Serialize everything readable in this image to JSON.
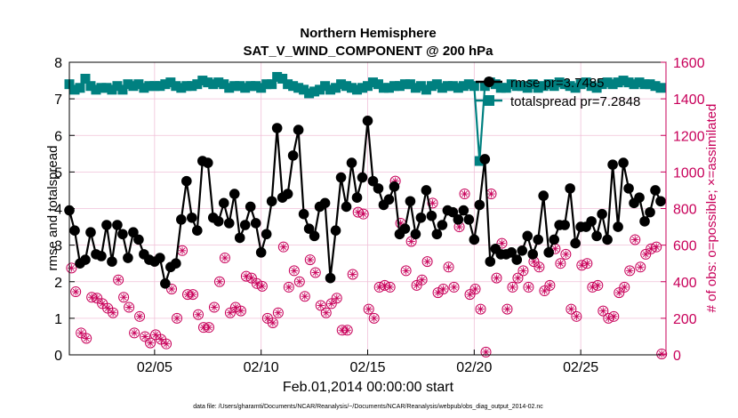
{
  "chart_data": {
    "type": "line",
    "title_line1": "Northern Hemisphere",
    "title_line2": "SAT_V_WIND_COMPONENT @ 200 hPa",
    "xlabel": "Feb.01,2014 00:00:00 start",
    "ylabel_left": "rmse and totalspread",
    "ylabel_right": "# of obs: o=possible; ×=assimilated",
    "footnote": "data file: /Users/gharamti/Documents/NCAR/Reanalysis/~/Documents/NCAR/Reanalysis/webpub/obs_diag_output_2014-02.nc",
    "xlim": [
      1,
      29
    ],
    "ylim_left": [
      0,
      8
    ],
    "ylim_right": [
      0,
      1600
    ],
    "xticks": [
      5,
      10,
      15,
      20,
      25
    ],
    "xtick_labels": [
      "02/05",
      "02/10",
      "02/15",
      "02/20",
      "02/25"
    ],
    "yticks_left": [
      0,
      1,
      2,
      3,
      4,
      5,
      6,
      7,
      8
    ],
    "yticks_left_labels": [
      "0",
      "1",
      "2",
      "3",
      "4",
      "5",
      "6",
      "7",
      "8"
    ],
    "yticks_right": [
      0,
      200,
      400,
      600,
      800,
      1000,
      1200,
      1400,
      1600
    ],
    "yticks_right_labels": [
      "0",
      "200",
      "400",
      "600",
      "800",
      "1000",
      "1200",
      "1400",
      "1600"
    ],
    "grid": true,
    "legend_placement": "top-right",
    "colors": {
      "rmse": "#000000",
      "totalspread": "#008080",
      "obs_count": "#c8005a",
      "grid": "#f0c0d8"
    },
    "series": [
      {
        "name": "rmse pr=3.7485",
        "axis": "left",
        "marker": "filled-circle",
        "x": [
          1.0,
          1.25,
          1.5,
          1.75,
          2.0,
          2.25,
          2.5,
          2.75,
          3.0,
          3.25,
          3.5,
          3.75,
          4.0,
          4.25,
          4.5,
          4.75,
          5.0,
          5.25,
          5.5,
          5.75,
          6.0,
          6.25,
          6.5,
          6.75,
          7.0,
          7.25,
          7.5,
          7.75,
          8.0,
          8.25,
          8.5,
          8.75,
          9.0,
          9.25,
          9.5,
          9.75,
          10.0,
          10.25,
          10.5,
          10.75,
          11.0,
          11.25,
          11.5,
          11.75,
          12.0,
          12.25,
          12.5,
          12.75,
          13.0,
          13.25,
          13.5,
          13.75,
          14.0,
          14.25,
          14.5,
          14.75,
          15.0,
          15.25,
          15.5,
          15.75,
          16.0,
          16.25,
          16.5,
          16.75,
          17.0,
          17.25,
          17.5,
          17.75,
          18.0,
          18.25,
          18.5,
          18.75,
          19.0,
          19.25,
          19.5,
          19.75,
          20.0,
          20.25,
          20.5,
          20.75,
          21.0,
          21.25,
          21.5,
          21.75,
          22.0,
          22.25,
          22.5,
          22.75,
          23.0,
          23.25,
          23.5,
          23.75,
          24.0,
          24.25,
          24.5,
          24.75,
          25.0,
          25.25,
          25.5,
          25.75,
          26.0,
          26.25,
          26.5,
          26.75,
          27.0,
          27.25,
          27.5,
          27.75,
          28.0,
          28.25,
          28.5,
          28.75
        ],
        "values": [
          3.95,
          3.4,
          2.5,
          2.6,
          3.35,
          2.75,
          2.7,
          3.55,
          2.55,
          3.55,
          3.3,
          2.65,
          3.35,
          3.15,
          2.75,
          2.6,
          2.55,
          2.65,
          1.95,
          2.4,
          2.5,
          3.7,
          4.75,
          3.75,
          3.4,
          5.3,
          5.25,
          3.75,
          3.65,
          4.15,
          3.6,
          4.4,
          3.2,
          3.55,
          4.05,
          3.6,
          2.8,
          3.3,
          4.2,
          6.2,
          4.3,
          4.4,
          5.45,
          6.15,
          3.85,
          3.45,
          3.25,
          4.05,
          4.15,
          2.1,
          3.4,
          4.85,
          4.05,
          5.25,
          4.3,
          4.85,
          6.4,
          4.75,
          4.55,
          4.1,
          4.25,
          4.6,
          3.3,
          3.45,
          4.2,
          3.3,
          3.75,
          4.5,
          3.8,
          3.3,
          3.55,
          3.95,
          3.9,
          3.7,
          3.95,
          3.7,
          3.15,
          4.1,
          5.35,
          2.55,
          2.9,
          2.75,
          2.75,
          2.8,
          2.6,
          2.85,
          3.25,
          2.75,
          3.15,
          4.35,
          2.8,
          3.15,
          3.55,
          3.55,
          4.55,
          3.05,
          3.5,
          3.5,
          3.65,
          3.25,
          3.85,
          3.15,
          5.2,
          3.5,
          5.25,
          4.55,
          4.15,
          4.3,
          3.65,
          3.9,
          4.5,
          4.2
        ]
      },
      {
        "name": "totalspread pr=7.2848",
        "axis": "left",
        "marker": "filled-square",
        "x": [
          1.0,
          1.25,
          1.5,
          1.75,
          2.0,
          2.25,
          2.5,
          2.75,
          3.0,
          3.25,
          3.5,
          3.75,
          4.0,
          4.25,
          4.5,
          4.75,
          5.0,
          5.25,
          5.5,
          5.75,
          6.0,
          6.25,
          6.5,
          6.75,
          7.0,
          7.25,
          7.5,
          7.75,
          8.0,
          8.25,
          8.5,
          8.75,
          9.0,
          9.25,
          9.5,
          9.75,
          10.0,
          10.25,
          10.5,
          10.75,
          11.0,
          11.25,
          11.5,
          11.75,
          12.0,
          12.25,
          12.5,
          12.75,
          13.0,
          13.25,
          13.5,
          13.75,
          14.0,
          14.25,
          14.5,
          14.75,
          15.0,
          15.25,
          15.5,
          15.75,
          16.0,
          16.25,
          16.5,
          16.75,
          17.0,
          17.25,
          17.5,
          17.75,
          18.0,
          18.25,
          18.5,
          18.75,
          19.0,
          19.25,
          19.5,
          19.75,
          20.0,
          20.25,
          20.5,
          20.75,
          21.0,
          21.25,
          21.5,
          21.75,
          22.0,
          22.25,
          22.5,
          22.75,
          23.0,
          23.25,
          23.5,
          23.75,
          24.0,
          24.25,
          24.5,
          24.75,
          25.0,
          25.25,
          25.5,
          25.75,
          26.0,
          26.25,
          26.5,
          26.75,
          27.0,
          27.25,
          27.5,
          27.75,
          28.0,
          28.25,
          28.5,
          28.75
        ],
        "values": [
          7.4,
          7.25,
          7.3,
          7.55,
          7.35,
          7.25,
          7.3,
          7.3,
          7.25,
          7.35,
          7.25,
          7.4,
          7.35,
          7.4,
          7.3,
          7.35,
          7.35,
          7.35,
          7.4,
          7.45,
          7.35,
          7.3,
          7.35,
          7.35,
          7.4,
          7.5,
          7.45,
          7.4,
          7.45,
          7.4,
          7.3,
          7.35,
          7.35,
          7.3,
          7.35,
          7.35,
          7.3,
          7.4,
          7.4,
          7.6,
          7.55,
          7.4,
          7.35,
          7.3,
          7.25,
          7.15,
          7.2,
          7.25,
          7.35,
          7.25,
          7.3,
          7.4,
          7.35,
          7.3,
          7.25,
          7.3,
          7.35,
          7.45,
          7.4,
          7.3,
          7.3,
          7.35,
          7.35,
          7.4,
          7.4,
          7.3,
          7.35,
          7.25,
          7.35,
          7.4,
          7.3,
          7.35,
          7.35,
          7.3,
          7.35,
          7.4,
          7.35,
          5.3,
          7.35,
          7.45,
          7.4,
          7.3,
          7.3,
          7.4,
          7.35,
          7.35,
          7.3,
          7.4,
          7.3,
          7.35,
          7.4,
          7.35,
          7.45,
          7.4,
          7.35,
          7.3,
          7.4,
          7.45,
          7.35,
          7.3,
          7.4,
          7.45,
          7.4,
          7.45,
          7.5,
          7.45,
          7.4,
          7.45,
          7.4,
          7.4,
          7.35,
          7.3
        ]
      },
      {
        "name": "# of obs possible/assimilated",
        "axis": "right",
        "marker": "circle-asterisk",
        "points": [
          [
            1.1,
            475
          ],
          [
            1.3,
            345
          ],
          [
            1.55,
            120
          ],
          [
            1.8,
            90
          ],
          [
            2.05,
            315
          ],
          [
            2.3,
            310
          ],
          [
            2.55,
            280
          ],
          [
            2.8,
            255
          ],
          [
            3.05,
            230
          ],
          [
            3.3,
            410
          ],
          [
            3.55,
            315
          ],
          [
            3.8,
            260
          ],
          [
            4.05,
            120
          ],
          [
            4.3,
            210
          ],
          [
            4.55,
            100
          ],
          [
            4.8,
            65
          ],
          [
            5.05,
            110
          ],
          [
            5.3,
            85
          ],
          [
            5.55,
            60
          ],
          [
            5.8,
            360
          ],
          [
            6.05,
            200
          ],
          [
            6.3,
            570
          ],
          [
            6.55,
            330
          ],
          [
            6.8,
            330
          ],
          [
            7.05,
            220
          ],
          [
            7.3,
            150
          ],
          [
            7.55,
            150
          ],
          [
            7.8,
            260
          ],
          [
            8.05,
            400
          ],
          [
            8.3,
            530
          ],
          [
            8.55,
            230
          ],
          [
            8.8,
            260
          ],
          [
            9.05,
            240
          ],
          [
            9.3,
            430
          ],
          [
            9.55,
            420
          ],
          [
            9.8,
            390
          ],
          [
            10.05,
            375
          ],
          [
            10.3,
            200
          ],
          [
            10.55,
            175
          ],
          [
            10.8,
            230
          ],
          [
            11.05,
            590
          ],
          [
            11.3,
            370
          ],
          [
            11.55,
            460
          ],
          [
            11.8,
            400
          ],
          [
            12.05,
            320
          ],
          [
            12.3,
            520
          ],
          [
            12.55,
            450
          ],
          [
            12.8,
            270
          ],
          [
            13.05,
            230
          ],
          [
            13.3,
            280
          ],
          [
            13.55,
            310
          ],
          [
            13.8,
            135
          ],
          [
            14.05,
            135
          ],
          [
            14.3,
            440
          ],
          [
            14.55,
            780
          ],
          [
            14.8,
            770
          ],
          [
            15.05,
            250
          ],
          [
            15.3,
            200
          ],
          [
            15.55,
            370
          ],
          [
            15.8,
            380
          ],
          [
            16.05,
            370
          ],
          [
            16.3,
            950
          ],
          [
            16.55,
            720
          ],
          [
            16.8,
            460
          ],
          [
            17.05,
            620
          ],
          [
            17.3,
            380
          ],
          [
            17.55,
            410
          ],
          [
            17.8,
            510
          ],
          [
            18.05,
            830
          ],
          [
            18.3,
            340
          ],
          [
            18.55,
            360
          ],
          [
            18.8,
            480
          ],
          [
            19.05,
            370
          ],
          [
            19.3,
            700
          ],
          [
            19.55,
            880
          ],
          [
            19.8,
            330
          ],
          [
            20.05,
            360
          ],
          [
            20.3,
            250
          ],
          [
            20.55,
            15
          ],
          [
            20.8,
            880
          ],
          [
            21.05,
            420
          ],
          [
            21.3,
            610
          ],
          [
            21.55,
            250
          ],
          [
            21.8,
            370
          ],
          [
            22.05,
            420
          ],
          [
            22.3,
            460
          ],
          [
            22.55,
            370
          ],
          [
            22.8,
            510
          ],
          [
            23.05,
            480
          ],
          [
            23.3,
            350
          ],
          [
            23.55,
            380
          ],
          [
            23.8,
            580
          ],
          [
            24.05,
            500
          ],
          [
            24.3,
            550
          ],
          [
            24.55,
            250
          ],
          [
            24.8,
            210
          ],
          [
            25.05,
            490
          ],
          [
            25.3,
            500
          ],
          [
            25.55,
            370
          ],
          [
            25.8,
            380
          ],
          [
            26.05,
            240
          ],
          [
            26.3,
            200
          ],
          [
            26.55,
            210
          ],
          [
            26.8,
            340
          ],
          [
            27.05,
            370
          ],
          [
            27.3,
            460
          ],
          [
            27.55,
            630
          ],
          [
            27.8,
            480
          ],
          [
            28.05,
            550
          ],
          [
            28.3,
            580
          ],
          [
            28.55,
            590
          ],
          [
            28.8,
            5
          ]
        ]
      }
    ]
  }
}
